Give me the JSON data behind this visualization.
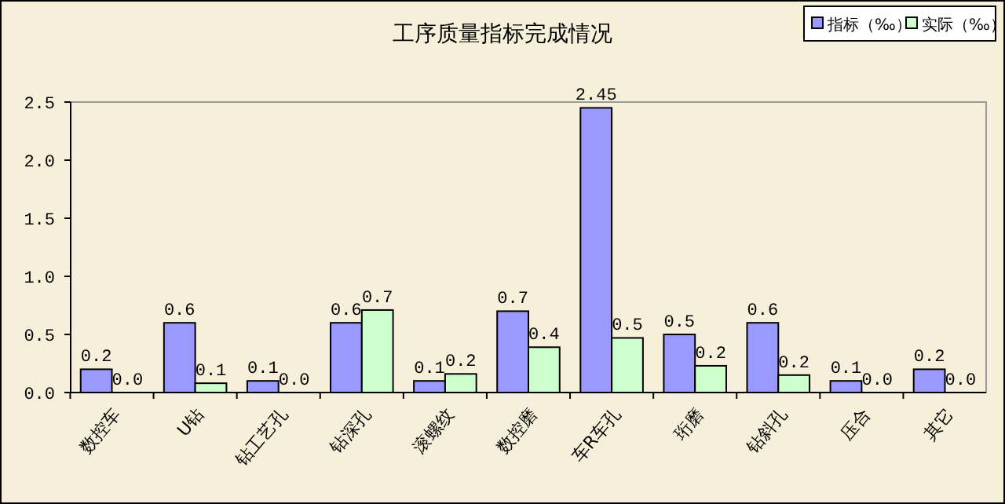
{
  "chart_data": {
    "type": "bar",
    "title": "工序质量指标完成情况",
    "categories": [
      "数控车",
      "U钻",
      "钻工艺孔",
      "钻深孔",
      "滚螺纹",
      "数控磨",
      "车R车孔",
      "珩磨",
      "钻斜孔",
      "压合",
      "其它"
    ],
    "series": [
      {
        "name": "指标（‰）",
        "color": "#9999ff",
        "values": [
          0.2,
          0.6,
          0.1,
          0.6,
          0.1,
          0.7,
          2.45,
          0.5,
          0.6,
          0.1,
          0.2
        ],
        "value_labels": [
          "0.2",
          "0.6",
          "0.1",
          "0.6",
          "0.1",
          "0.7",
          "2.45",
          "0.5",
          "0.6",
          "0.1",
          "0.2"
        ]
      },
      {
        "name": "实际（‰）",
        "color": "#ccffcc",
        "values": [
          0.0,
          0.08,
          0.0,
          0.71,
          0.16,
          0.39,
          0.47,
          0.23,
          0.15,
          0.0,
          0.0
        ],
        "value_labels": [
          "0.0",
          "0.1",
          "0.0",
          "0.7",
          "0.2",
          "0.4",
          "0.5",
          "0.2",
          "0.2",
          "0.0",
          "0.0"
        ]
      }
    ],
    "ylim": [
      0,
      2.5
    ],
    "yticks": [
      {
        "value": 0,
        "label": "0.0"
      },
      {
        "value": 0.5,
        "label": "0.5"
      },
      {
        "value": 1,
        "label": "1.0"
      },
      {
        "value": 1.5,
        "label": "1.5"
      },
      {
        "value": 2,
        "label": "2.0"
      },
      {
        "value": 2.5,
        "label": "2.5"
      }
    ],
    "grid": false,
    "legend": "top right"
  }
}
